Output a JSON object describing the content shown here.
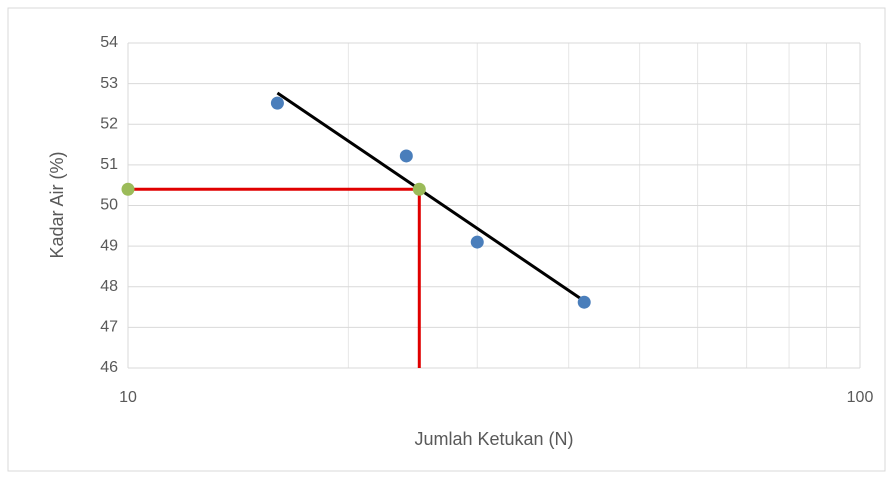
{
  "chart_data": {
    "type": "scatter",
    "xlabel": "Jumlah Ketukan (N)",
    "ylabel": "Kadar Air (%)",
    "xscale": "log",
    "xlim": [
      10,
      100
    ],
    "xticks": [
      10,
      100
    ],
    "xminor": [
      20,
      30,
      40,
      50,
      60,
      70,
      80,
      90
    ],
    "ylim": [
      46,
      54
    ],
    "yticks": [
      46,
      47,
      48,
      49,
      50,
      51,
      52,
      53,
      54
    ],
    "grid": true,
    "series": [
      {
        "style": "line",
        "color": "#e00000",
        "x": [
          10,
          25,
          25
        ],
        "values": [
          50.4,
          50.4,
          46
        ]
      },
      {
        "style": "line",
        "color": "#000000",
        "x": [
          16,
          42
        ],
        "values": [
          52.77,
          47.65
        ]
      },
      {
        "style": "marker",
        "color": "#4a7ebb",
        "x": [
          16,
          24,
          30,
          42
        ],
        "values": [
          52.52,
          51.22,
          49.1,
          47.62
        ]
      },
      {
        "style": "marker",
        "color": "#9bbb59",
        "x": [
          10,
          25
        ],
        "values": [
          50.4,
          50.4
        ]
      }
    ]
  }
}
